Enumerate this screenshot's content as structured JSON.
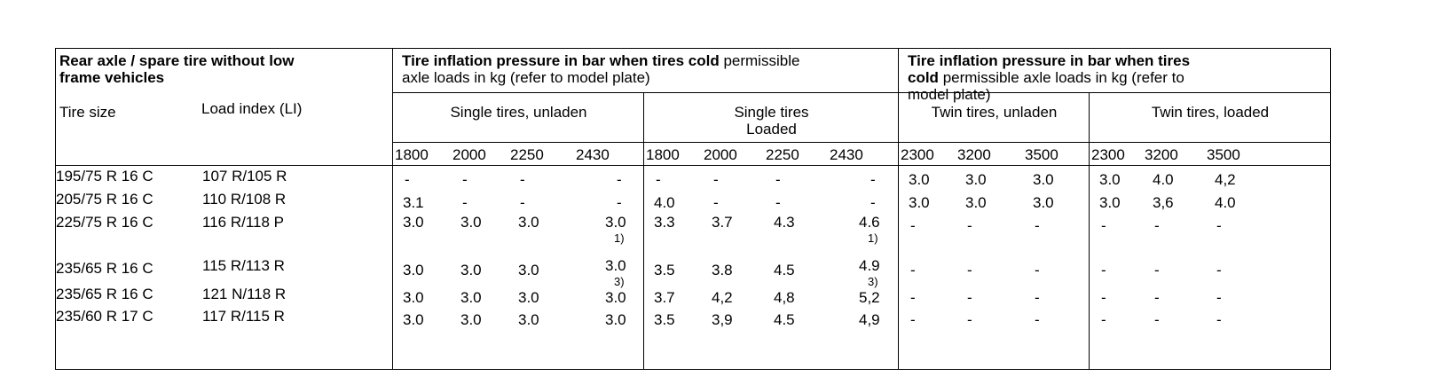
{
  "header": {
    "col1_bold": "Rear axle / spare tire without low frame vehicles",
    "col1_line1": "Rear axle / spare tire without low",
    "col1_line2": "frame vehicles",
    "group1_bold": "Tire inflation pressure in bar when tires cold",
    "group1_rest1": "permissible",
    "group1_rest2": "axle loads in kg (refer to model plate)",
    "group2_line1": "Tire inflation pressure in bar when tires",
    "group2_bold2": "cold",
    "group2_rest2": "permissible axle loads in kg (refer to",
    "group2_line3": "model plate)",
    "tire_size": "Tire size",
    "load_index": "Load index (LI)",
    "single_unladen": "Single tires, unladen",
    "single_loaded_1": "Single tires",
    "single_loaded_2": "Loaded",
    "twin_unladen": "Twin tires, unladen",
    "twin_loaded": "Twin tires, loaded"
  },
  "load_columns": [
    "1800",
    "2000",
    "2250",
    "2430",
    "1800",
    "2000",
    "2250",
    "2430",
    "2300",
    "3200",
    "3500",
    "2300",
    "3200",
    "3500"
  ],
  "rows": [
    {
      "size": "195/75 R 16 C",
      "li": "107 R/105 R",
      "v": [
        "-",
        "-",
        "-",
        "-",
        "-",
        "-",
        "-",
        "-",
        "3.0",
        "3.0",
        "3.0",
        "3.0",
        "4.0",
        "4,2"
      ]
    },
    {
      "size": "205/75 R 16 C",
      "li": "110 R/108 R",
      "v": [
        "3.1",
        "-",
        "-",
        "-",
        "4.0",
        "-",
        "-",
        "-",
        "3.0",
        "3.0",
        "3.0",
        "3.0",
        "3,6",
        "4.0"
      ]
    },
    {
      "size": "225/75 R 16 C",
      "li": "116 R/118 P",
      "v": [
        "3.0",
        "3.0",
        "3.0",
        "3.0",
        "3.3",
        "3.7",
        "4.3",
        "4.6",
        "-",
        "-",
        "-",
        "-",
        "-",
        "-"
      ],
      "notes": {
        "3": "1)",
        "7": "1)"
      }
    },
    {
      "size": "235/65 R 16 C",
      "li": "115 R/113 R",
      "v": [
        "3.0",
        "3.0",
        "3.0",
        "3.0",
        "3.5",
        "3.8",
        "4.5",
        "4.9",
        "-",
        "-",
        "-",
        "-",
        "-",
        "-"
      ],
      "notes": {
        "3": "3)",
        "7": "3)"
      }
    },
    {
      "size": "235/65 R 16 C",
      "li": "121 N/118 R",
      "v": [
        "3.0",
        "3.0",
        "3.0",
        "3.0",
        "3.7",
        "4,2",
        "4,8",
        "5,2",
        "-",
        "-",
        "-",
        "-",
        "-",
        "-"
      ]
    },
    {
      "size": "235/60 R 17 C",
      "li": "117 R/115 R",
      "v": [
        "3.0",
        "3.0",
        "3.0",
        "3.0",
        "3.5",
        "3,9",
        "4.5",
        "4,9",
        "-",
        "-",
        "-",
        "-",
        "-",
        "-"
      ]
    }
  ]
}
